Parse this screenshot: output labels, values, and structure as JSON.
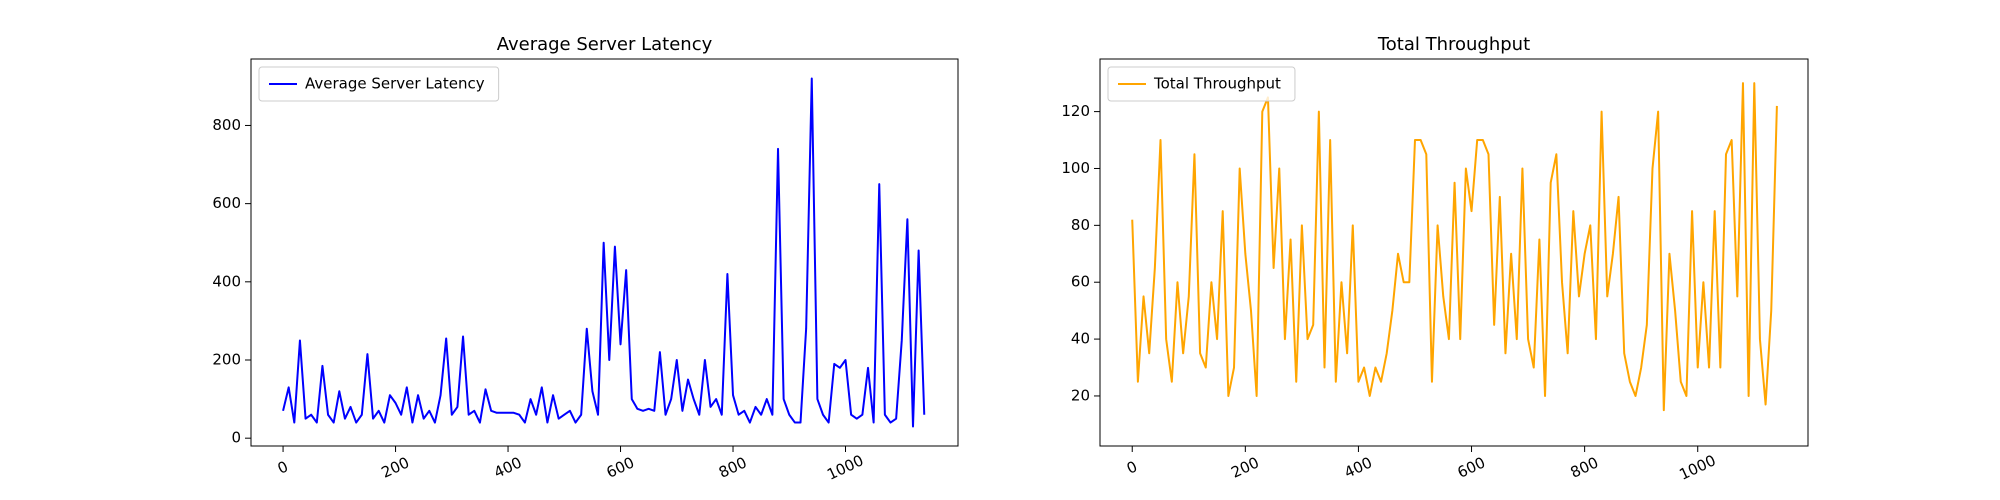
{
  "chart_data": [
    {
      "type": "line",
      "title": "Average Server Latency",
      "legend": "upper left",
      "x": [
        0,
        10,
        20,
        30,
        40,
        50,
        60,
        70,
        80,
        90,
        100,
        110,
        120,
        130,
        140,
        150,
        160,
        170,
        180,
        190,
        200,
        210,
        220,
        230,
        240,
        250,
        260,
        270,
        280,
        290,
        300,
        310,
        320,
        330,
        340,
        350,
        360,
        370,
        380,
        390,
        400,
        410,
        420,
        430,
        440,
        450,
        460,
        470,
        480,
        490,
        500,
        510,
        520,
        530,
        540,
        550,
        560,
        570,
        580,
        590,
        600,
        610,
        620,
        630,
        640,
        650,
        660,
        670,
        680,
        690,
        700,
        710,
        720,
        730,
        740,
        750,
        760,
        770,
        780,
        790,
        800,
        810,
        820,
        830,
        840,
        850,
        860,
        870,
        880,
        890,
        900,
        910,
        920,
        930,
        940,
        950,
        960,
        970,
        980,
        990,
        1000,
        1010,
        1020,
        1030,
        1040,
        1050,
        1060,
        1070,
        1080,
        1090,
        1100,
        1110,
        1120,
        1130,
        1140
      ],
      "series": [
        {
          "name": "Average Server Latency",
          "color": "#0000ff",
          "values": [
            70,
            130,
            40,
            250,
            50,
            60,
            40,
            185,
            60,
            40,
            120,
            50,
            80,
            40,
            60,
            215,
            50,
            70,
            40,
            110,
            90,
            60,
            130,
            40,
            110,
            50,
            70,
            40,
            110,
            255,
            60,
            80,
            260,
            60,
            70,
            40,
            125,
            70,
            65,
            65,
            65,
            65,
            60,
            40,
            100,
            60,
            130,
            40,
            110,
            50,
            60,
            70,
            40,
            60,
            280,
            120,
            60,
            500,
            200,
            490,
            240,
            430,
            100,
            75,
            70,
            75,
            70,
            220,
            60,
            100,
            200,
            70,
            150,
            100,
            60,
            200,
            80,
            100,
            60,
            420,
            110,
            60,
            70,
            40,
            80,
            60,
            100,
            60,
            740,
            100,
            60,
            40,
            40,
            280,
            920,
            100,
            60,
            40,
            190,
            180,
            200,
            60,
            50,
            60,
            180,
            40,
            650,
            60,
            40,
            50,
            250,
            560,
            30,
            480,
            60
          ]
        }
      ],
      "xlim": [
        -57,
        1200
      ],
      "ylim": [
        -20,
        970
      ],
      "xticks": [
        0,
        200,
        400,
        600,
        800,
        1000
      ],
      "yticks": [
        0,
        200,
        400,
        600,
        800
      ]
    },
    {
      "type": "line",
      "title": "Total Throughput",
      "legend": "upper left",
      "x": [
        0,
        10,
        20,
        30,
        40,
        50,
        60,
        70,
        80,
        90,
        100,
        110,
        120,
        130,
        140,
        150,
        160,
        170,
        180,
        190,
        200,
        210,
        220,
        230,
        240,
        250,
        260,
        270,
        280,
        290,
        300,
        310,
        320,
        330,
        340,
        350,
        360,
        370,
        380,
        390,
        400,
        410,
        420,
        430,
        440,
        450,
        460,
        470,
        480,
        490,
        500,
        510,
        520,
        530,
        540,
        550,
        560,
        570,
        580,
        590,
        600,
        610,
        620,
        630,
        640,
        650,
        660,
        670,
        680,
        690,
        700,
        710,
        720,
        730,
        740,
        750,
        760,
        770,
        780,
        790,
        800,
        810,
        820,
        830,
        840,
        850,
        860,
        870,
        880,
        890,
        900,
        910,
        920,
        930,
        940,
        950,
        960,
        970,
        980,
        990,
        1000,
        1010,
        1020,
        1030,
        1040,
        1050,
        1060,
        1070,
        1080,
        1090,
        1100,
        1110,
        1120,
        1130,
        1140
      ],
      "series": [
        {
          "name": "Total Throughput",
          "color": "#ffa500",
          "values": [
            82,
            25,
            55,
            35,
            65,
            110,
            40,
            25,
            60,
            35,
            55,
            105,
            35,
            30,
            60,
            40,
            85,
            20,
            30,
            100,
            70,
            50,
            20,
            120,
            125,
            65,
            100,
            40,
            75,
            25,
            80,
            40,
            45,
            120,
            30,
            110,
            25,
            60,
            35,
            80,
            25,
            30,
            20,
            30,
            25,
            35,
            50,
            70,
            60,
            60,
            110,
            110,
            105,
            25,
            80,
            55,
            40,
            95,
            40,
            100,
            85,
            110,
            110,
            105,
            45,
            90,
            35,
            70,
            40,
            100,
            40,
            30,
            75,
            20,
            95,
            105,
            60,
            35,
            85,
            55,
            70,
            80,
            40,
            120,
            55,
            70,
            90,
            35,
            25,
            20,
            30,
            45,
            100,
            120,
            15,
            70,
            50,
            25,
            20,
            85,
            30,
            60,
            30,
            85,
            30,
            105,
            110,
            55,
            130,
            20,
            130,
            40,
            17,
            50,
            122
          ]
        }
      ],
      "xlim": [
        -57,
        1195
      ],
      "ylim": [
        2.4,
        138.5
      ],
      "xticks": [
        0,
        200,
        400,
        600,
        800,
        1000
      ],
      "yticks": [
        20,
        40,
        60,
        80,
        100,
        120
      ]
    }
  ]
}
